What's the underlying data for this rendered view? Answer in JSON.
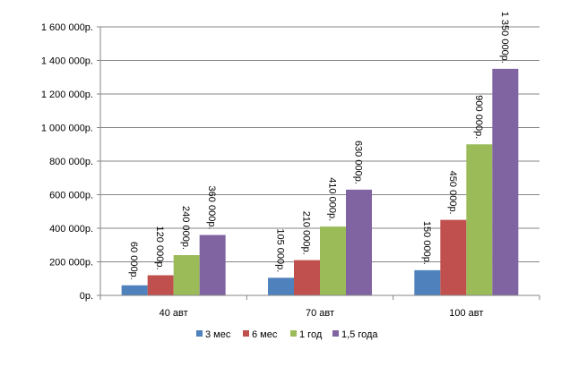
{
  "chart_data": {
    "type": "bar",
    "categories": [
      "40 авт",
      "70 авт",
      "100 авт"
    ],
    "series": [
      {
        "name": "3 мес",
        "color": "#4F81BD",
        "values": [
          60000,
          105000,
          150000
        ],
        "labels": [
          "60 000р.",
          "105 000р.",
          "150 000р."
        ]
      },
      {
        "name": "6 мес",
        "color": "#C0504D",
        "values": [
          120000,
          210000,
          450000
        ],
        "labels": [
          "120 000р.",
          "210 000р.",
          "450 000р."
        ]
      },
      {
        "name": "1 год",
        "color": "#9BBB59",
        "values": [
          240000,
          410000,
          900000
        ],
        "labels": [
          "240 000р.",
          "410 000р.",
          "900 000р."
        ]
      },
      {
        "name": "1,5 года",
        "color": "#8064A2",
        "values": [
          360000,
          630000,
          1350000
        ],
        "labels": [
          "360 000р.",
          "630 000р.",
          "1 350 000р."
        ]
      }
    ],
    "y_ticks": [
      {
        "value": 0,
        "label": "0р."
      },
      {
        "value": 200000,
        "label": "200 000р."
      },
      {
        "value": 400000,
        "label": "400 000р."
      },
      {
        "value": 600000,
        "label": "600 000р."
      },
      {
        "value": 800000,
        "label": "800 000р."
      },
      {
        "value": 1000000,
        "label": "1 000 000р."
      },
      {
        "value": 1200000,
        "label": "1 200 000р."
      },
      {
        "value": 1400000,
        "label": "1 400 000р."
      },
      {
        "value": 1600000,
        "label": "1 600 000р."
      }
    ],
    "ylim": [
      0,
      1600000
    ],
    "title": "",
    "xlabel": "",
    "ylabel": "",
    "grid": true,
    "legend_position": "bottom"
  }
}
